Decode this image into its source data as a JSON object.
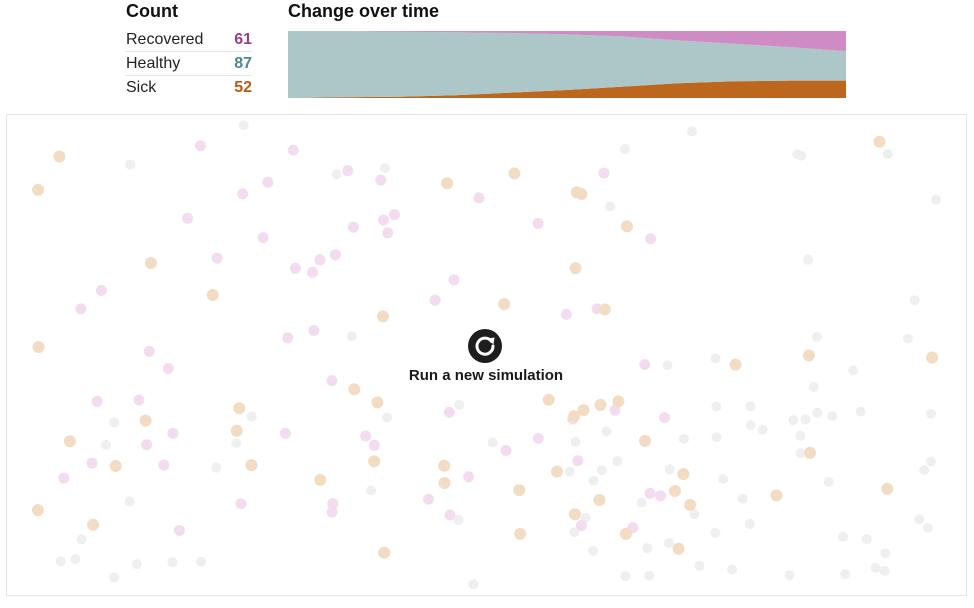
{
  "count_panel": {
    "title": "Count",
    "rows": [
      {
        "label": "Recovered",
        "value": "61",
        "color": "#9b3c87"
      },
      {
        "label": "Healthy",
        "value": "87",
        "color": "#4a8891"
      },
      {
        "label": "Sick",
        "value": "52",
        "color": "#b75b14"
      }
    ]
  },
  "change_panel": {
    "title": "Change over time"
  },
  "colors": {
    "recovered_area": "#cf8bc4",
    "healthy_area": "#adc6c8",
    "sick_area": "#bd661e",
    "dot_recovered": "#f3dcef",
    "dot_healthy": "#eef0f0",
    "dot_sick": "#f2dcc4"
  },
  "chart_data": {
    "type": "area",
    "x": [
      0,
      10,
      20,
      30,
      40,
      50,
      60,
      70,
      80,
      90,
      100
    ],
    "series": [
      {
        "name": "Sick",
        "values": [
          0,
          1,
          2,
          4,
          8,
          12,
          17,
          22,
          25,
          26,
          26
        ]
      },
      {
        "name": "Healthy",
        "values": [
          100,
          99,
          97,
          94,
          89,
          83,
          75,
          64,
          56,
          50,
          44
        ]
      },
      {
        "name": "Recovered",
        "values": [
          0,
          0,
          1,
          2,
          3,
          5,
          8,
          14,
          19,
          24,
          30
        ]
      }
    ],
    "stacked": true,
    "ylim": [
      0,
      100
    ]
  },
  "simulation": {
    "run_label": "Run a new simulation",
    "run_icon": "refresh-icon",
    "counts": {
      "recovered": 61,
      "healthy": 87,
      "sick": 52
    }
  }
}
